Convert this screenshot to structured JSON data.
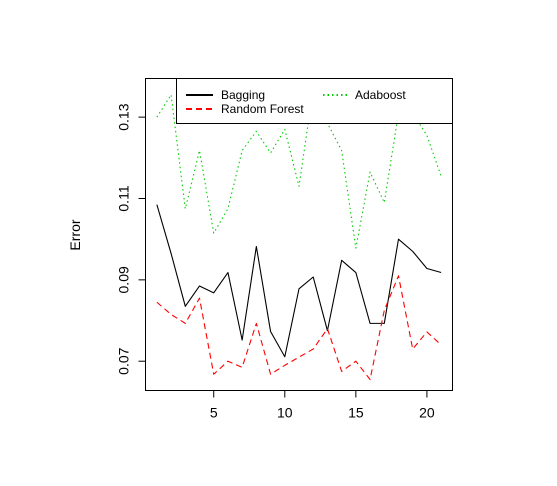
{
  "chart_data": {
    "type": "line",
    "title": "",
    "xlabel": "",
    "ylabel": "Error",
    "xlim": [
      0.2,
      21.8
    ],
    "ylim": [
      0.0628,
      0.1395
    ],
    "xticks": [
      5,
      10,
      15,
      20
    ],
    "yticks": [
      0.07,
      0.09,
      0.11,
      0.13
    ],
    "grid": false,
    "legend": {
      "placement": "top",
      "columns": 2
    },
    "x": [
      1,
      2,
      3,
      4,
      5,
      6,
      7,
      8,
      9,
      10,
      11,
      12,
      13,
      14,
      15,
      16,
      17,
      18,
      19,
      20,
      21
    ],
    "series": [
      {
        "name": "Bagging",
        "color": "#000000",
        "dash": "solid",
        "values": [
          0.1085,
          0.0965,
          0.0835,
          0.0885,
          0.0868,
          0.0918,
          0.0752,
          0.0982,
          0.0773,
          0.0711,
          0.0878,
          0.0907,
          0.0775,
          0.0948,
          0.0918,
          0.0793,
          0.0793,
          0.1,
          0.097,
          0.0928,
          0.0918
        ]
      },
      {
        "name": "Random Forest",
        "color": "#ff0000",
        "dash": "dashed",
        "values": [
          0.0845,
          0.0815,
          0.0793,
          0.0855,
          0.0668,
          0.07,
          0.0685,
          0.0793,
          0.0668,
          0.069,
          0.071,
          0.073,
          0.078,
          0.0675,
          0.07,
          0.0655,
          0.0825,
          0.091,
          0.073,
          0.0772,
          0.074
        ]
      },
      {
        "name": "Adaboost",
        "color": "#00cd00",
        "dash": "dotted",
        "values": [
          0.13,
          0.1355,
          0.1075,
          0.1218,
          0.1015,
          0.1075,
          0.1218,
          0.1265,
          0.1212,
          0.127,
          0.113,
          0.137,
          0.1285,
          0.1218,
          0.0978,
          0.1165,
          0.109,
          0.131,
          0.131,
          0.1255,
          0.1155
        ]
      }
    ]
  }
}
